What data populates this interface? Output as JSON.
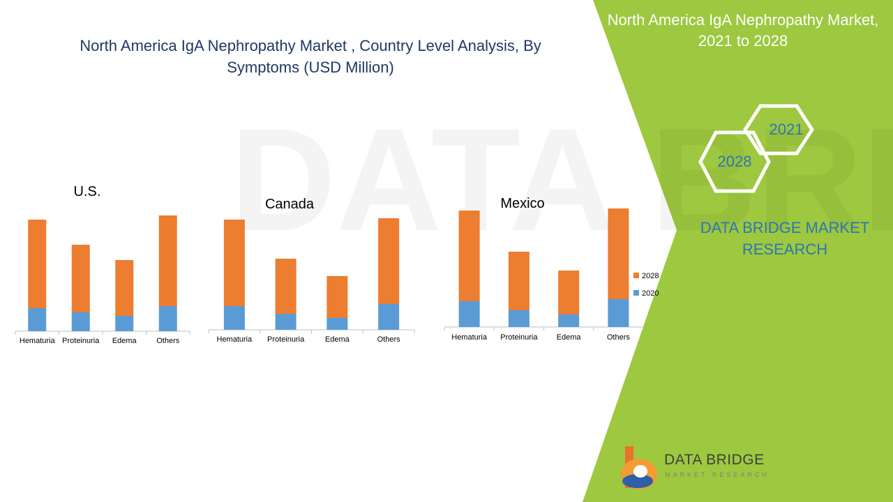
{
  "title": "North America IgA Nephropathy Market , Country Level Analysis, By Symptoms (USD Million)",
  "side_panel": {
    "title": "North America IgA Nephropathy Market, 2021 to 2028",
    "hex_years": [
      "2021",
      "2028"
    ],
    "brand": "DATA BRIDGE MARKET RESEARCH",
    "logo_text": "DATA BRIDGE",
    "logo_subtext": "MARKET RESEARCH"
  },
  "colors": {
    "series_2020": "#5b9bd5",
    "series_2028": "#ed7d31",
    "panel_green": "#9dc83f",
    "title_blue": "#1f3864",
    "brand_blue": "#2e75b6"
  },
  "chart_data": [
    {
      "type": "bar",
      "stacked": true,
      "title": "U.S.",
      "categories": [
        "Hematuria",
        "Proteinuria",
        "Edema",
        "Others"
      ],
      "series": [
        {
          "name": "2020",
          "values": [
            33,
            27,
            22,
            36
          ]
        },
        {
          "name": "2028",
          "values": [
            127,
            97,
            80,
            130
          ]
        }
      ]
    },
    {
      "type": "bar",
      "stacked": true,
      "title": "Canada",
      "categories": [
        "Hematuria",
        "Proteinuria",
        "Edema",
        "Others"
      ],
      "series": [
        {
          "name": "2020",
          "values": [
            34,
            23,
            17,
            37
          ]
        },
        {
          "name": "2028",
          "values": [
            124,
            79,
            60,
            123
          ]
        }
      ]
    },
    {
      "type": "bar",
      "stacked": true,
      "title": "Mexico",
      "categories": [
        "Hematuria",
        "Proteinuria",
        "Edema",
        "Others"
      ],
      "series": [
        {
          "name": "2020",
          "values": [
            37,
            24,
            18,
            40
          ]
        },
        {
          "name": "2028",
          "values": [
            130,
            84,
            63,
            130
          ]
        }
      ],
      "legend": [
        "2028",
        "2020"
      ],
      "legend_position": "right"
    }
  ]
}
